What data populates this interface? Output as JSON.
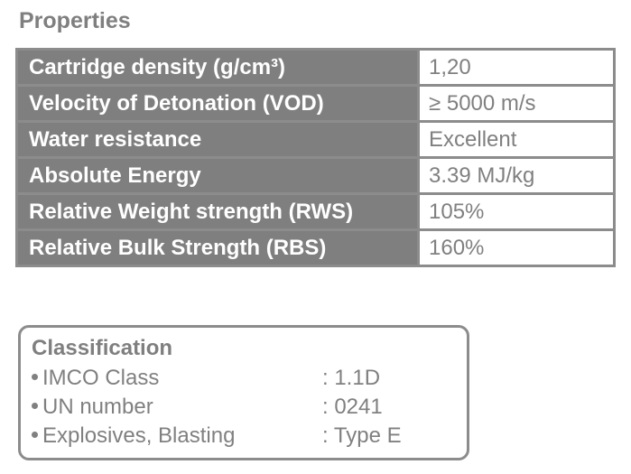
{
  "properties": {
    "title": "Properties",
    "rows": [
      {
        "name": "Cartridge density (g/cm³)",
        "value": "1,20"
      },
      {
        "name": "Velocity of Detonation (VOD)",
        "value": "≥ 5000 m/s"
      },
      {
        "name": "Water resistance",
        "value": "Excellent"
      },
      {
        "name": "Absolute Energy",
        "value": "3.39 MJ/kg"
      },
      {
        "name": "Relative Weight strength (RWS)",
        "value": "105%"
      },
      {
        "name": "Relative Bulk Strength (RBS)",
        "value": "160%"
      }
    ]
  },
  "classification": {
    "title": "Classification",
    "items": [
      {
        "label": "IMCO Class",
        "value": ": 1.1D"
      },
      {
        "label": "UN number",
        "value": ": 0241"
      },
      {
        "label": "Explosives, Blasting",
        "value": ": Type E"
      }
    ]
  },
  "colors": {
    "header_gray": "#7f7f7f",
    "border_gray": "#8c8c8c",
    "value_text": "#808080"
  }
}
